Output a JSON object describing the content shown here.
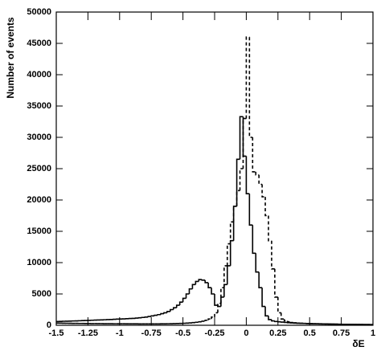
{
  "chart_data": {
    "type": "step_histogram",
    "x_label": "δE",
    "y_label": "Number of events",
    "bins": [
      -1.5,
      -1.475,
      -1.45,
      -1.425,
      -1.4,
      -1.375,
      -1.35,
      -1.325,
      -1.3,
      -1.275,
      -1.25,
      -1.225,
      -1.2,
      -1.175,
      -1.15,
      -1.125,
      -1.1,
      -1.075,
      -1.05,
      -1.025,
      -1,
      -0.975,
      -0.95,
      -0.925,
      -0.9,
      -0.875,
      -0.85,
      -0.825,
      -0.8,
      -0.775,
      -0.75,
      -0.725,
      -0.7,
      -0.675,
      -0.65,
      -0.625,
      -0.6,
      -0.575,
      -0.55,
      -0.525,
      -0.5,
      -0.475,
      -0.45,
      -0.425,
      -0.4,
      -0.375,
      -0.35,
      -0.325,
      -0.3,
      -0.275,
      -0.25,
      -0.225,
      -0.2,
      -0.175,
      -0.15,
      -0.125,
      -0.1,
      -0.075,
      -0.05,
      -0.025,
      0,
      0.025,
      0.05,
      0.075,
      0.1,
      0.125,
      0.15,
      0.175,
      0.2,
      0.225,
      0.25,
      0.275,
      0.3,
      0.325,
      0.35,
      0.375,
      0.4,
      0.425,
      0.45,
      0.475,
      0.5,
      0.525,
      0.55,
      0.575,
      0.6,
      0.625,
      0.65,
      0.675,
      0.7,
      0.725,
      0.75,
      0.775,
      0.8,
      0.825,
      0.85,
      0.875,
      0.9,
      0.925,
      0.95,
      0.975,
      1
    ],
    "series": [
      {
        "color": "#000000",
        "line_style": "solid",
        "values": [
          600,
          620,
          640,
          650,
          670,
          690,
          700,
          720,
          740,
          760,
          780,
          800,
          820,
          840,
          860,
          880,
          900,
          920,
          950,
          980,
          1000,
          1020,
          1050,
          1080,
          1100,
          1150,
          1200,
          1250,
          1300,
          1400,
          1500,
          1600,
          1700,
          1850,
          2000,
          2200,
          2500,
          2800,
          3200,
          3700,
          4300,
          5000,
          5800,
          6500,
          7000,
          7300,
          7200,
          6800,
          6000,
          5000,
          3200,
          3000,
          4500,
          6500,
          9500,
          13500,
          19000,
          26500,
          33300,
          27000,
          21000,
          16000,
          11500,
          8500,
          6000,
          3000,
          1500,
          900,
          700,
          600,
          550,
          500,
          450,
          400,
          380,
          350,
          330,
          310,
          290,
          270,
          250,
          240,
          230,
          220,
          210,
          200,
          190,
          180,
          170,
          160,
          150,
          140,
          140,
          130,
          130,
          120,
          120,
          110,
          110,
          100
        ]
      },
      {
        "color": "#000000",
        "line_style": "dashed",
        "values": [
          350,
          340,
          330,
          320,
          310,
          300,
          300,
          290,
          290,
          280,
          280,
          270,
          270,
          260,
          260,
          250,
          250,
          250,
          240,
          240,
          240,
          240,
          230,
          230,
          230,
          230,
          220,
          220,
          220,
          220,
          220,
          220,
          220,
          230,
          230,
          240,
          250,
          260,
          280,
          300,
          320,
          350,
          380,
          420,
          480,
          550,
          650,
          800,
          1000,
          1300,
          2000,
          3500,
          6000,
          9500,
          13000,
          16500,
          19000,
          21500,
          25000,
          33000,
          46000,
          30000,
          24500,
          24000,
          22500,
          20500,
          17500,
          13500,
          9000,
          4500,
          2000,
          1000,
          700,
          550,
          450,
          400,
          350,
          320,
          300,
          280,
          260,
          250,
          240,
          230,
          220,
          210,
          200,
          190,
          180,
          170,
          160,
          150,
          150,
          140,
          140,
          130,
          130,
          120,
          120,
          110
        ]
      }
    ],
    "xlim": [
      -1.5,
      1
    ],
    "xticks": [
      -1.5,
      -1.25,
      -1,
      -0.75,
      -0.5,
      -0.25,
      0,
      0.25,
      0.5,
      0.75,
      1
    ],
    "ylim": [
      0,
      50000
    ],
    "yticks": [
      0,
      5000,
      10000,
      15000,
      20000,
      25000,
      30000,
      35000,
      40000,
      45000,
      50000
    ],
    "grid": false
  }
}
